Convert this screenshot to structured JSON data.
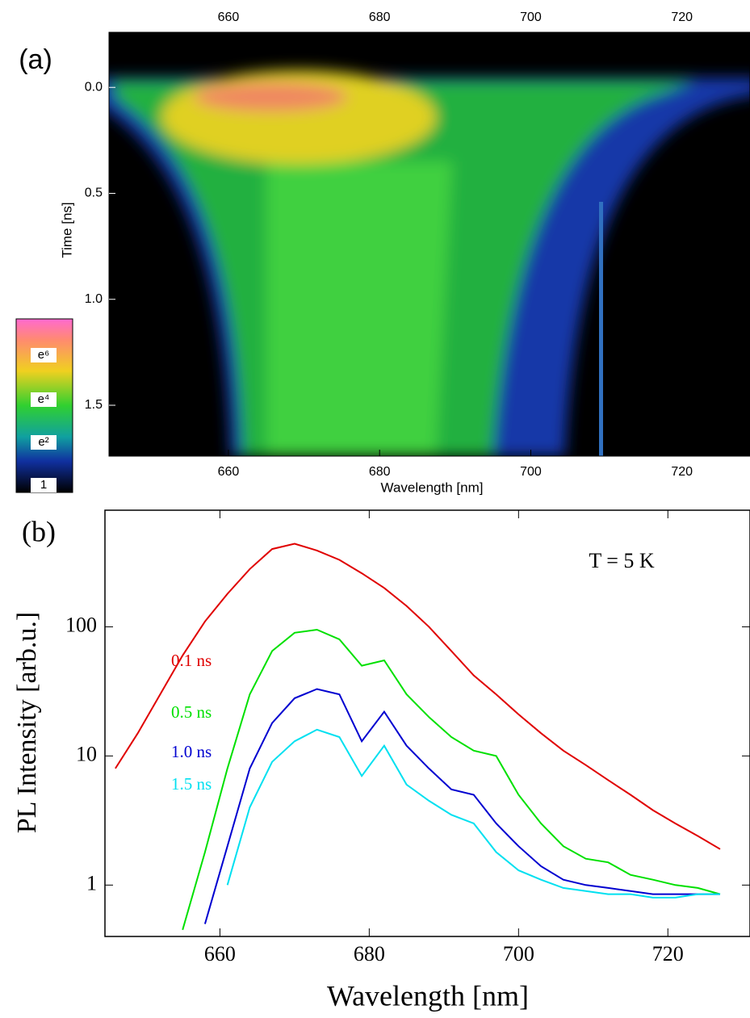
{
  "chart_data": [
    {
      "type": "heatmap",
      "panel_label": "(a)",
      "xlabel": "Wavelength [nm]",
      "ylabel": "Time  [ns]",
      "xlim": [
        644.2,
        729
      ],
      "xticks": [
        660,
        680,
        700,
        720
      ],
      "ylim": [
        1.74,
        -0.26
      ],
      "yticks": [
        {
          "value": 0,
          "label": "0.0"
        },
        0.5,
        {
          "value": 1,
          "label": "1.0"
        },
        1.5
      ],
      "colorbar_labels": [
        "e⁶",
        "e⁴",
        "e²",
        "1"
      ]
    },
    {
      "type": "line",
      "panel_label": "(b)",
      "xlabel": "Wavelength [nm]",
      "ylabel": "PL Intensity [arb.u.]",
      "annotation": "T = 5 K",
      "log_y": true,
      "xlim": [
        644.6,
        731
      ],
      "xticks": [
        660,
        680,
        700,
        720
      ],
      "ylim": [
        0.4,
        800
      ],
      "yticks": [
        1,
        10,
        100
      ],
      "x": [
        646,
        649,
        652,
        655,
        658,
        661,
        664,
        667,
        670,
        673,
        676,
        679,
        682,
        685,
        688,
        691,
        694,
        697,
        700,
        703,
        706,
        709,
        712,
        715,
        718,
        721,
        724,
        727
      ],
      "series": [
        {
          "name": "0.1 ns",
          "color": "#e00000",
          "values": [
            8,
            15,
            30,
            60,
            110,
            180,
            280,
            400,
            440,
            390,
            330,
            260,
            200,
            145,
            100,
            65,
            42,
            30,
            21,
            15,
            11,
            8.5,
            6.5,
            5,
            3.8,
            3,
            2.4,
            1.9
          ]
        },
        {
          "name": "0.5 ns",
          "color": "#00e000",
          "values": [
            null,
            null,
            null,
            0.45,
            1.8,
            8,
            30,
            65,
            90,
            95,
            80,
            50,
            55,
            30,
            20,
            14,
            11,
            10,
            5,
            3,
            2,
            1.6,
            1.5,
            1.2,
            1.1,
            1.0,
            0.95,
            0.85
          ]
        },
        {
          "name": "1.0 ns",
          "color": "#0000d0",
          "values": [
            null,
            null,
            null,
            null,
            0.5,
            2,
            8,
            18,
            28,
            33,
            30,
            13,
            22,
            12,
            8,
            5.5,
            5,
            3,
            2,
            1.4,
            1.1,
            1.0,
            0.95,
            0.9,
            0.85,
            0.85,
            0.85,
            0.85
          ]
        },
        {
          "name": "1.5 ns",
          "color": "#00e0f0",
          "values": [
            null,
            null,
            null,
            null,
            null,
            1.0,
            4,
            9,
            13,
            16,
            14,
            7,
            12,
            6,
            4.5,
            3.5,
            3,
            1.8,
            1.3,
            1.1,
            0.95,
            0.9,
            0.85,
            0.85,
            0.8,
            0.8,
            0.85,
            0.85
          ]
        }
      ]
    }
  ]
}
